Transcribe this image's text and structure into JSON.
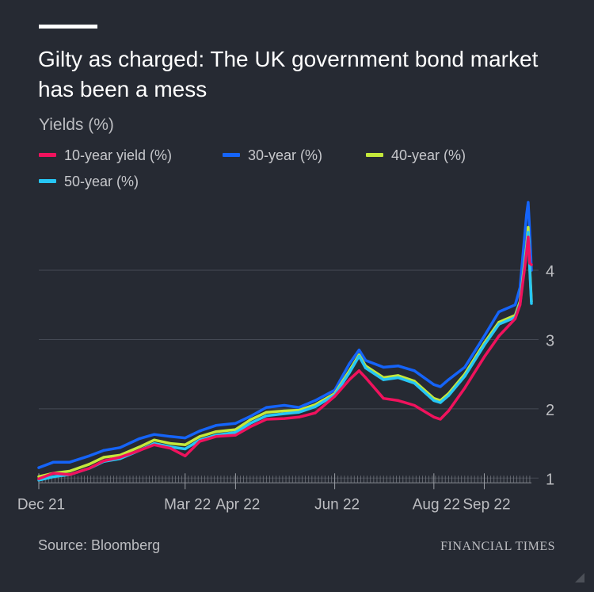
{
  "header": {
    "title": "Gilty as charged: The UK government bond market has been a mess",
    "subtitle": "Yields (%)"
  },
  "footer": {
    "source": "Source: Bloomberg",
    "brand": "FINANCIAL TIMES"
  },
  "colors": {
    "background": "#262a33",
    "grid": "#454a55",
    "axis_text": "#bcbdc1"
  },
  "chart_data": {
    "type": "line",
    "title": "Gilty as charged: The UK government bond market has been a mess",
    "ylabel": "Yields (%)",
    "ylim": [
      0.9,
      4.95
    ],
    "yticks": [
      1,
      2,
      3,
      4
    ],
    "xlim": [
      "2021-12-01",
      "2022-09-30"
    ],
    "xticks": [
      {
        "date": "2021-12-01",
        "label": "Dec 21"
      },
      {
        "date": "2022-03-01",
        "label": "Mar 22"
      },
      {
        "date": "2022-04-01",
        "label": "Apr 22"
      },
      {
        "date": "2022-06-01",
        "label": "Jun 22"
      },
      {
        "date": "2022-08-01",
        "label": "Aug 22"
      },
      {
        "date": "2022-09-01",
        "label": "Sep 22"
      }
    ],
    "grid": true,
    "legend": "top",
    "dates": [
      "2021-12-01",
      "2021-12-10",
      "2021-12-20",
      "2022-01-01",
      "2022-01-10",
      "2022-01-20",
      "2022-02-01",
      "2022-02-10",
      "2022-02-20",
      "2022-03-01",
      "2022-03-10",
      "2022-03-20",
      "2022-04-01",
      "2022-04-10",
      "2022-04-20",
      "2022-05-01",
      "2022-05-10",
      "2022-05-20",
      "2022-06-01",
      "2022-06-10",
      "2022-06-16",
      "2022-06-20",
      "2022-07-01",
      "2022-07-10",
      "2022-07-20",
      "2022-08-01",
      "2022-08-05",
      "2022-08-10",
      "2022-08-20",
      "2022-09-01",
      "2022-09-10",
      "2022-09-20",
      "2022-09-23",
      "2022-09-27",
      "2022-09-28",
      "2022-09-29",
      "2022-09-30"
    ],
    "series": [
      {
        "name": "10-year yield (%)",
        "color": "#f0125d",
        "values": [
          0.99,
          1.07,
          1.05,
          1.14,
          1.25,
          1.3,
          1.4,
          1.48,
          1.43,
          1.32,
          1.53,
          1.6,
          1.62,
          1.74,
          1.85,
          1.86,
          1.88,
          1.94,
          2.18,
          2.42,
          2.55,
          2.45,
          2.15,
          2.12,
          2.05,
          1.88,
          1.85,
          1.97,
          2.3,
          2.75,
          3.05,
          3.3,
          3.5,
          4.25,
          4.48,
          4.1,
          4.08
        ]
      },
      {
        "name": "30-year (%)",
        "color": "#1564f9",
        "values": [
          1.15,
          1.23,
          1.23,
          1.32,
          1.4,
          1.44,
          1.57,
          1.63,
          1.6,
          1.58,
          1.68,
          1.76,
          1.79,
          1.89,
          2.02,
          2.05,
          2.02,
          2.12,
          2.27,
          2.65,
          2.85,
          2.7,
          2.6,
          2.62,
          2.55,
          2.35,
          2.32,
          2.42,
          2.6,
          3.05,
          3.4,
          3.5,
          3.75,
          4.8,
          4.98,
          4.55,
          4.0
        ]
      },
      {
        "name": "40-year (%)",
        "color": "#c4e83b",
        "values": [
          1.02,
          1.07,
          1.1,
          1.2,
          1.3,
          1.33,
          1.45,
          1.55,
          1.5,
          1.48,
          1.6,
          1.67,
          1.7,
          1.84,
          1.95,
          1.97,
          1.98,
          2.06,
          2.22,
          2.55,
          2.78,
          2.62,
          2.45,
          2.48,
          2.4,
          2.15,
          2.12,
          2.22,
          2.5,
          2.95,
          3.25,
          3.35,
          3.55,
          4.35,
          4.62,
          4.05,
          3.55
        ]
      },
      {
        "name": "50-year (%)",
        "color": "#26c6f5",
        "values": [
          0.97,
          1.02,
          1.05,
          1.14,
          1.24,
          1.28,
          1.4,
          1.5,
          1.45,
          1.42,
          1.55,
          1.62,
          1.66,
          1.79,
          1.9,
          1.93,
          1.95,
          2.03,
          2.2,
          2.52,
          2.76,
          2.59,
          2.42,
          2.45,
          2.37,
          2.12,
          2.09,
          2.19,
          2.47,
          2.92,
          3.22,
          3.32,
          3.52,
          4.3,
          4.55,
          4.0,
          3.52
        ]
      }
    ]
  }
}
